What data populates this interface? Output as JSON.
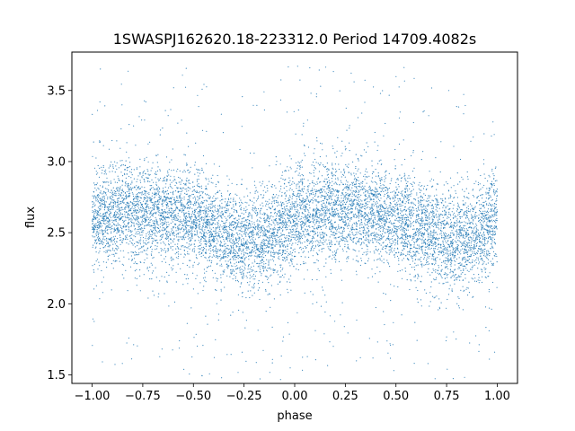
{
  "chart_data": {
    "type": "scatter",
    "title": "1SWASPJ162620.18-223312.0 Period 14709.4082s",
    "xlabel": "phase",
    "ylabel": "flux",
    "xlim": [
      -1.1,
      1.1
    ],
    "ylim": [
      1.44,
      3.77
    ],
    "xticks": [
      -1.0,
      -0.75,
      -0.5,
      -0.25,
      0.0,
      0.25,
      0.5,
      0.75,
      1.0
    ],
    "xtick_labels": [
      "−1.00",
      "−0.75",
      "−0.50",
      "−0.25",
      "0.00",
      "0.25",
      "0.50",
      "0.75",
      "1.00"
    ],
    "yticks": [
      1.5,
      2.0,
      2.5,
      3.0,
      3.5
    ],
    "ytick_labels": [
      "1.5",
      "2.0",
      "2.5",
      "3.0",
      "3.5"
    ],
    "grid": false,
    "legend": "none",
    "marker_color": "#1f77b4",
    "phase_range": [
      -1.0,
      1.0
    ],
    "light_curve_profile": [
      {
        "phase": -1.0,
        "flux": 2.6
      },
      {
        "phase": -0.85,
        "flux": 2.66
      },
      {
        "phase": -0.7,
        "flux": 2.65
      },
      {
        "phase": -0.5,
        "flux": 2.6
      },
      {
        "phase": -0.35,
        "flux": 2.5
      },
      {
        "phase": -0.22,
        "flux": 2.42
      },
      {
        "phase": -0.1,
        "flux": 2.5
      },
      {
        "phase": 0.0,
        "flux": 2.6
      },
      {
        "phase": 0.15,
        "flux": 2.66
      },
      {
        "phase": 0.3,
        "flux": 2.65
      },
      {
        "phase": 0.5,
        "flux": 2.6
      },
      {
        "phase": 0.65,
        "flux": 2.5
      },
      {
        "phase": 0.78,
        "flux": 2.42
      },
      {
        "phase": 0.9,
        "flux": 2.5
      },
      {
        "phase": 1.0,
        "flux": 2.6
      }
    ],
    "scatter_sigma": 0.17,
    "approx_point_count": 9000
  }
}
